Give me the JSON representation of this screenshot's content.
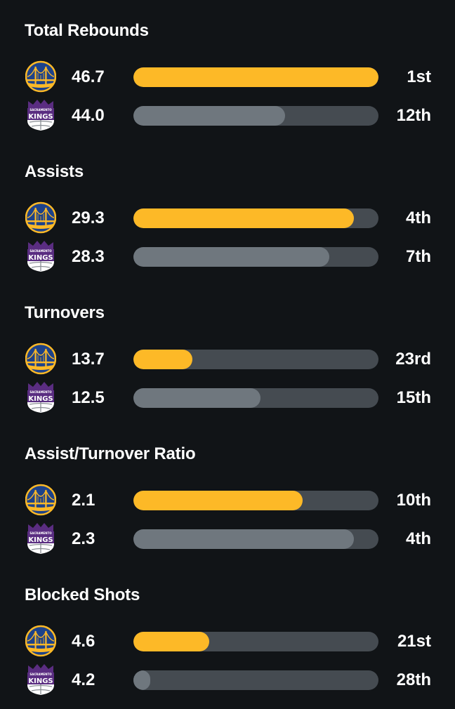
{
  "colors": {
    "background": "#111417",
    "warriors_bar": "#fdb927",
    "kings_bar": "#6f777e",
    "track": "#454b51"
  },
  "teams": [
    {
      "logo_icon": "golden-state-warriors-logo-icon"
    },
    {
      "logo_icon": "sacramento-kings-logo-icon",
      "logo_text_top": "SACRAMENTO",
      "logo_text_main": "KINGS"
    }
  ],
  "stats": [
    {
      "title": "Total Rebounds",
      "rows": [
        {
          "value": "46.7",
          "rank": "1st",
          "fill": 1.0
        },
        {
          "value": "44.0",
          "rank": "12th",
          "fill": 0.62
        }
      ]
    },
    {
      "title": "Assists",
      "rows": [
        {
          "value": "29.3",
          "rank": "4th",
          "fill": 0.9
        },
        {
          "value": "28.3",
          "rank": "7th",
          "fill": 0.8
        }
      ]
    },
    {
      "title": "Turnovers",
      "rows": [
        {
          "value": "13.7",
          "rank": "23rd",
          "fill": 0.24
        },
        {
          "value": "12.5",
          "rank": "15th",
          "fill": 0.52
        }
      ]
    },
    {
      "title": "Assist/Turnover Ratio",
      "rows": [
        {
          "value": "2.1",
          "rank": "10th",
          "fill": 0.69
        },
        {
          "value": "2.3",
          "rank": "4th",
          "fill": 0.9
        }
      ]
    },
    {
      "title": "Blocked Shots",
      "rows": [
        {
          "value": "4.6",
          "rank": "21st",
          "fill": 0.31
        },
        {
          "value": "4.2",
          "rank": "28th",
          "fill": 0.07
        }
      ]
    }
  ]
}
